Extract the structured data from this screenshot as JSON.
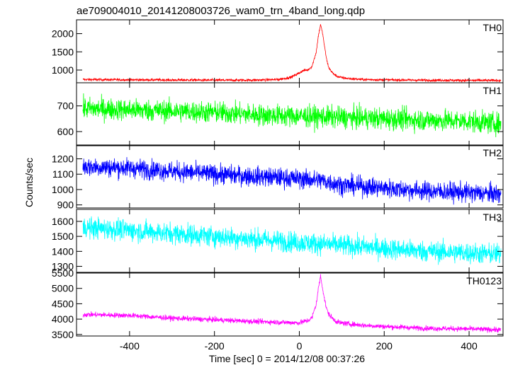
{
  "title": "ae709004010_20141208003726_wam0_trn_4band_long.qdp",
  "xlabel": "Time [sec] 0 = 2014/12/08 00:37:26",
  "ylabel": "Counts/sec",
  "chart_data": {
    "type": "line",
    "title": "ae709004010_20141208003726_wam0_trn_4band_long.qdp",
    "xlabel": "Time [sec] 0 = 2014/12/08 00:37:26",
    "ylabel": "Counts/sec",
    "xlim": [
      -525,
      480
    ],
    "xticks": [
      -400,
      -200,
      0,
      200,
      400
    ],
    "grid": false,
    "panels": [
      {
        "name": "TH0",
        "color": "#ff0000",
        "ylim": [
          650,
          2380
        ],
        "yticks": [
          1000,
          1500,
          2000
        ],
        "x": [
          -510,
          -450,
          -400,
          -350,
          -300,
          -250,
          -200,
          -150,
          -100,
          -50,
          -20,
          0,
          10,
          20,
          30,
          40,
          45,
          50,
          55,
          60,
          65,
          70,
          80,
          90,
          100,
          120,
          150,
          200,
          250,
          300,
          350,
          400,
          450,
          475
        ],
        "values": [
          740,
          735,
          730,
          730,
          725,
          725,
          720,
          720,
          725,
          740,
          800,
          920,
          990,
          1000,
          1100,
          1500,
          1950,
          2250,
          2000,
          1600,
          1250,
          1050,
          900,
          820,
          790,
          760,
          740,
          730,
          725,
          720,
          720,
          715,
          715,
          715
        ],
        "noise": 25
      },
      {
        "name": "TH1",
        "color": "#00ff00",
        "ylim": [
          545,
          790
        ],
        "yticks": [
          600,
          700
        ],
        "x": [
          -510,
          -400,
          -300,
          -200,
          -100,
          0,
          100,
          200,
          300,
          400,
          475
        ],
        "values": [
          690,
          685,
          680,
          675,
          665,
          660,
          655,
          650,
          645,
          640,
          630
        ],
        "noise": 30
      },
      {
        "name": "TH2",
        "color": "#0000ff",
        "ylim": [
          880,
          1290
        ],
        "yticks": [
          900,
          1000,
          1100,
          1200
        ],
        "x": [
          -510,
          -400,
          -300,
          -200,
          -100,
          0,
          50,
          100,
          150,
          200,
          300,
          400,
          475
        ],
        "values": [
          1150,
          1140,
          1120,
          1100,
          1085,
          1070,
          1060,
          1030,
          1020,
          1010,
          990,
          980,
          970
        ],
        "noise": 45
      },
      {
        "name": "TH3",
        "color": "#00ffff",
        "ylim": [
          1260,
          1680
        ],
        "yticks": [
          1300,
          1400,
          1500,
          1600
        ],
        "x": [
          -510,
          -400,
          -300,
          -200,
          -100,
          0,
          100,
          200,
          300,
          400,
          475
        ],
        "values": [
          1560,
          1540,
          1520,
          1500,
          1480,
          1460,
          1440,
          1420,
          1400,
          1390,
          1380
        ],
        "noise": 50
      },
      {
        "name": "TH0123",
        "color": "#ff00ff",
        "ylim": [
          3450,
          5500
        ],
        "yticks": [
          3500,
          4000,
          4500,
          5000,
          5500
        ],
        "x": [
          -510,
          -400,
          -300,
          -200,
          -100,
          0,
          20,
          30,
          40,
          45,
          50,
          55,
          60,
          65,
          70,
          80,
          90,
          100,
          150,
          200,
          300,
          400,
          475
        ],
        "values": [
          4150,
          4120,
          4030,
          3980,
          3920,
          3880,
          3950,
          4050,
          4500,
          5000,
          5400,
          5000,
          4600,
          4300,
          4150,
          4000,
          3900,
          3870,
          3800,
          3760,
          3700,
          3680,
          3650
        ],
        "noise": 60
      }
    ]
  }
}
